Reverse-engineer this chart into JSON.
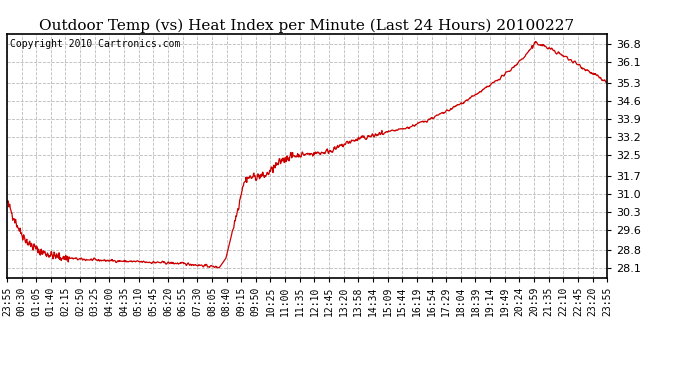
{
  "title": "Outdoor Temp (vs) Heat Index per Minute (Last 24 Hours) 20100227",
  "copyright": "Copyright 2010 Cartronics.com",
  "line_color": "#cc0000",
  "background_color": "#ffffff",
  "grid_color": "#bbbbbb",
  "ylim": [
    27.75,
    37.2
  ],
  "yticks": [
    28.1,
    28.8,
    29.6,
    30.3,
    31.0,
    31.7,
    32.5,
    33.2,
    33.9,
    34.6,
    35.3,
    36.1,
    36.8
  ],
  "xtick_labels": [
    "23:55",
    "00:30",
    "01:05",
    "01:40",
    "02:15",
    "02:50",
    "03:25",
    "04:00",
    "04:35",
    "05:10",
    "05:45",
    "06:20",
    "06:55",
    "07:30",
    "08:05",
    "08:40",
    "09:15",
    "09:50",
    "10:25",
    "11:00",
    "11:35",
    "12:10",
    "12:45",
    "13:20",
    "13:58",
    "14:34",
    "15:09",
    "15:44",
    "16:19",
    "16:54",
    "17:29",
    "18:04",
    "18:39",
    "19:14",
    "19:49",
    "20:24",
    "20:59",
    "21:35",
    "22:10",
    "22:45",
    "23:20",
    "23:55"
  ],
  "title_fontsize": 11,
  "copyright_fontsize": 7,
  "ytick_fontsize": 8,
  "xtick_fontsize": 7
}
